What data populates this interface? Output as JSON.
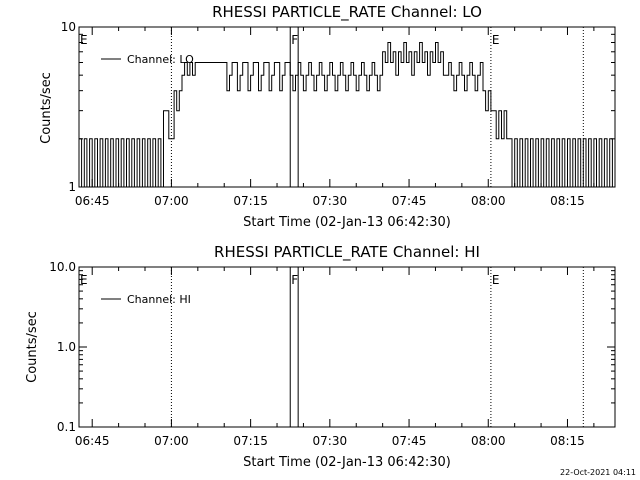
{
  "chart_data": [
    {
      "type": "line",
      "title": "RHESSI PARTICLE_RATE Channel: LO",
      "xlabel": "Start Time (02-Jan-13 06:42:30)",
      "ylabel": "Counts/sec",
      "y_scale": "log",
      "ylim": [
        1,
        10
      ],
      "y_ticks": [
        {
          "value": 1,
          "label": "1"
        },
        {
          "value": 10,
          "label": "10"
        }
      ],
      "xlim": [
        "06:42:30",
        "08:24:00"
      ],
      "x_ticks": [
        "06:45",
        "07:00",
        "07:15",
        "07:30",
        "07:45",
        "08:00",
        "08:15"
      ],
      "legend": {
        "label": "Channel: LO",
        "placement": "top-left"
      },
      "grid": false,
      "event_markers": [
        {
          "time": "06:42:30",
          "label": "E",
          "style": "dotted"
        },
        {
          "time": "07:00:00",
          "label": "",
          "style": "dotted"
        },
        {
          "time": "07:22:30",
          "label": "F",
          "style": "solid"
        },
        {
          "time": "07:24:00",
          "label": "",
          "style": "solid"
        },
        {
          "time": "08:00:30",
          "label": "E",
          "style": "dotted"
        },
        {
          "time": "08:18:00",
          "label": "",
          "style": "dotted"
        }
      ],
      "series": [
        {
          "segments": [
            {
              "start": "06:42:30",
              "end": "06:58:30",
              "pattern": "alternating",
              "values": [
                2,
                1
              ]
            },
            {
              "start": "06:58:30",
              "end": "06:59:30",
              "pattern": "constant",
              "values": [
                3
              ]
            },
            {
              "start": "06:59:30",
              "end": "07:00:30",
              "pattern": "constant",
              "values": [
                2
              ]
            },
            {
              "start": "07:00:30",
              "end": "07:02:00",
              "pattern": "alternating",
              "values": [
                4,
                3
              ]
            },
            {
              "start": "07:02:00",
              "end": "07:05:00",
              "pattern": "alternating",
              "values": [
                5,
                6
              ]
            },
            {
              "start": "07:05:00",
              "end": "07:10:00",
              "pattern": "constant",
              "values": [
                6
              ]
            },
            {
              "start": "07:10:00",
              "end": "07:22:30",
              "pattern": "alternating",
              "values": [
                6,
                4,
                5,
                6
              ]
            },
            {
              "start": "07:22:30",
              "end": "07:40:00",
              "pattern": "alternating",
              "values": [
                5,
                4,
                5,
                6
              ]
            },
            {
              "start": "07:40:00",
              "end": "07:52:00",
              "pattern": "alternating",
              "values": [
                7,
                6,
                8,
                6,
                7,
                5
              ]
            },
            {
              "start": "07:52:00",
              "end": "07:59:00",
              "pattern": "alternating",
              "values": [
                5,
                6,
                5,
                4
              ]
            },
            {
              "start": "07:59:00",
              "end": "08:01:00",
              "pattern": "alternating",
              "values": [
                4,
                3
              ]
            },
            {
              "start": "08:01:00",
              "end": "08:04:00",
              "pattern": "alternating",
              "values": [
                3,
                2
              ]
            },
            {
              "start": "08:04:00",
              "end": "08:24:00",
              "pattern": "alternating",
              "values": [
                2,
                1
              ]
            }
          ]
        }
      ]
    },
    {
      "type": "line",
      "title": "RHESSI PARTICLE_RATE Channel: HI",
      "xlabel": "Start Time (02-Jan-13 06:42:30)",
      "ylabel": "Counts/sec",
      "y_scale": "log",
      "ylim": [
        0.1,
        10
      ],
      "y_ticks": [
        {
          "value": 0.1,
          "label": "0.1"
        },
        {
          "value": 1,
          "label": "1.0"
        },
        {
          "value": 10,
          "label": "10.0"
        }
      ],
      "xlim": [
        "06:42:30",
        "08:24:00"
      ],
      "x_ticks": [
        "06:45",
        "07:00",
        "07:15",
        "07:30",
        "07:45",
        "08:00",
        "08:15"
      ],
      "legend": {
        "label": "Channel: HI",
        "placement": "top-left"
      },
      "grid": false,
      "event_markers": [
        {
          "time": "06:42:30",
          "label": "E",
          "style": "dotted"
        },
        {
          "time": "07:00:00",
          "label": "",
          "style": "dotted"
        },
        {
          "time": "07:22:30",
          "label": "F",
          "style": "solid"
        },
        {
          "time": "07:24:00",
          "label": "",
          "style": "solid"
        },
        {
          "time": "08:00:30",
          "label": "E",
          "style": "dotted"
        },
        {
          "time": "08:18:00",
          "label": "",
          "style": "dotted"
        }
      ],
      "series": []
    }
  ],
  "footer": {
    "timestamp": "22-Oct-2021 04:11"
  }
}
